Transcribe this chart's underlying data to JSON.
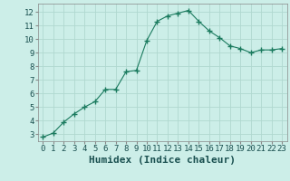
{
  "x": [
    0,
    1,
    2,
    3,
    4,
    5,
    6,
    7,
    8,
    9,
    10,
    11,
    12,
    13,
    14,
    15,
    16,
    17,
    18,
    19,
    20,
    21,
    22,
    23
  ],
  "y": [
    2.8,
    3.1,
    3.9,
    4.5,
    5.0,
    5.4,
    6.3,
    6.3,
    7.6,
    7.7,
    9.9,
    11.3,
    11.7,
    11.9,
    12.1,
    11.3,
    10.6,
    10.1,
    9.5,
    9.3,
    9.0,
    9.2,
    9.2,
    9.3
  ],
  "xlabel": "Humidex (Indice chaleur)",
  "xlim": [
    -0.5,
    23.5
  ],
  "ylim": [
    2.5,
    12.6
  ],
  "yticks": [
    3,
    4,
    5,
    6,
    7,
    8,
    9,
    10,
    11,
    12
  ],
  "xticks": [
    0,
    1,
    2,
    3,
    4,
    5,
    6,
    7,
    8,
    9,
    10,
    11,
    12,
    13,
    14,
    15,
    16,
    17,
    18,
    19,
    20,
    21,
    22,
    23
  ],
  "line_color": "#1a7a5e",
  "bg_color": "#cceee8",
  "grid_color": "#b0d8d0",
  "xlabel_fontsize": 8,
  "tick_fontsize": 6.5
}
